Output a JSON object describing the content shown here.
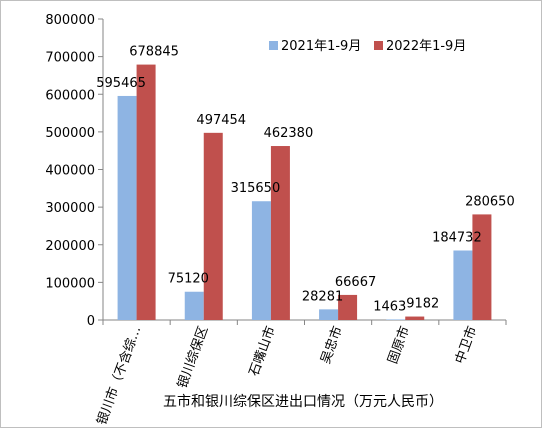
{
  "chart_data": {
    "type": "bar",
    "title": "五市和银川综保区进出口情况（万元人民币）",
    "categories": [
      "银川市（不含综…",
      "银川综保区",
      "石嘴山市",
      "吴忠市",
      "固原市",
      "中卫市"
    ],
    "series": [
      {
        "name": "2021年1-9月",
        "values": [
          595465,
          75120,
          315650,
          28281,
          1463,
          184732
        ],
        "color": "#8eb4e3"
      },
      {
        "name": "2022年1-9月",
        "values": [
          678845,
          497454,
          462380,
          66667,
          9182,
          280650
        ],
        "color": "#c0504d"
      }
    ],
    "ylim": [
      0,
      800000
    ],
    "yticks": [
      0,
      100000,
      200000,
      300000,
      400000,
      500000,
      600000,
      700000,
      800000
    ],
    "grid": false,
    "legend_position": "top-right"
  }
}
